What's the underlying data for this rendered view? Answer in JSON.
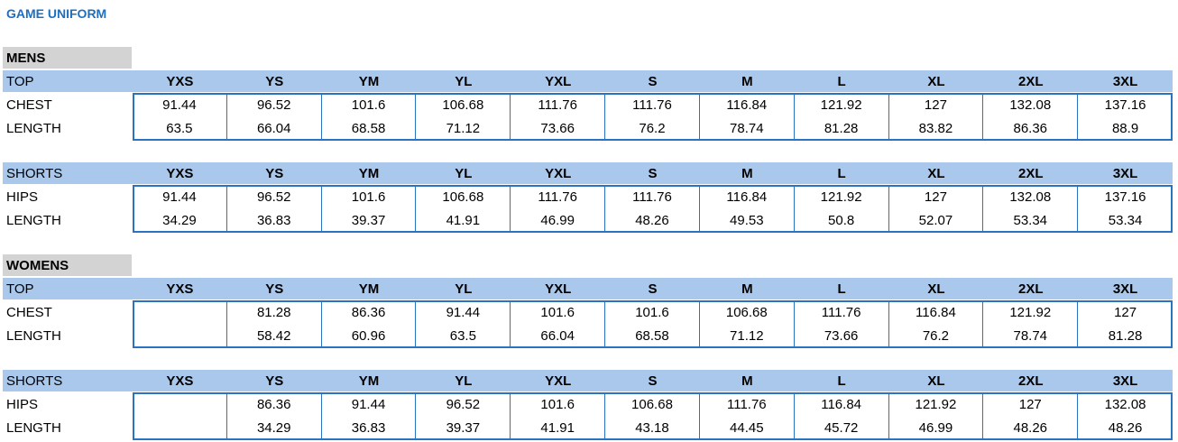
{
  "title": "GAME UNIFORM",
  "sections": [
    {
      "label": "MENS",
      "tables": [
        {
          "header": [
            "TOP",
            "YXS",
            "YS",
            "YM",
            "YL",
            "YXL",
            "S",
            "M",
            "L",
            "XL",
            "2XL",
            "3XL"
          ],
          "rows": [
            {
              "label": "CHEST",
              "values": [
                91.44,
                96.52,
                101.6,
                106.68,
                111.76,
                111.76,
                116.84,
                121.92,
                127,
                132.08,
                137.16
              ]
            },
            {
              "label": "LENGTH",
              "values": [
                63.5,
                66.04,
                68.58,
                71.12,
                73.66,
                76.2,
                78.74,
                81.28,
                83.82,
                86.36,
                88.9
              ]
            }
          ]
        },
        {
          "header": [
            "SHORTS",
            "YXS",
            "YS",
            "YM",
            "YL",
            "YXL",
            "S",
            "M",
            "L",
            "XL",
            "2XL",
            "3XL"
          ],
          "rows": [
            {
              "label": "HIPS",
              "values": [
                91.44,
                96.52,
                101.6,
                106.68,
                111.76,
                111.76,
                116.84,
                121.92,
                127,
                132.08,
                137.16
              ]
            },
            {
              "label": "LENGTH",
              "values": [
                34.29,
                36.83,
                39.37,
                41.91,
                46.99,
                48.26,
                49.53,
                50.8,
                52.07,
                53.34,
                53.34
              ]
            }
          ]
        }
      ]
    },
    {
      "label": "WOMENS",
      "tables": [
        {
          "header": [
            "TOP",
            "YXS",
            "YS",
            "YM",
            "YL",
            "YXL",
            "S",
            "M",
            "L",
            "XL",
            "2XL",
            "3XL"
          ],
          "rows": [
            {
              "label": "CHEST",
              "values": [
                null,
                81.28,
                86.36,
                91.44,
                101.6,
                101.6,
                106.68,
                111.76,
                116.84,
                121.92,
                127
              ]
            },
            {
              "label": "LENGTH",
              "values": [
                null,
                58.42,
                60.96,
                63.5,
                66.04,
                68.58,
                71.12,
                73.66,
                76.2,
                78.74,
                81.28
              ]
            }
          ]
        },
        {
          "header": [
            "SHORTS",
            "YXS",
            "YS",
            "YM",
            "YL",
            "YXL",
            "S",
            "M",
            "L",
            "XL",
            "2XL",
            "3XL"
          ],
          "rows": [
            {
              "label": "HIPS",
              "values": [
                null,
                86.36,
                91.44,
                96.52,
                101.6,
                106.68,
                111.76,
                116.84,
                121.92,
                127,
                132.08
              ]
            },
            {
              "label": "LENGTH",
              "values": [
                null,
                34.29,
                36.83,
                39.37,
                41.91,
                43.18,
                44.45,
                45.72,
                46.99,
                48.26,
                48.26
              ]
            }
          ]
        }
      ]
    }
  ]
}
